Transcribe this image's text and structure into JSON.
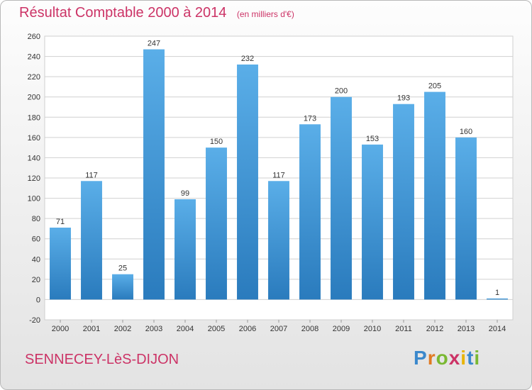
{
  "title": "Résultat Comptable 2000 à 2014",
  "unit": "(en milliers d'€)",
  "place": "SENNECEY-LèS-DIJON",
  "brand": {
    "letters": [
      "P",
      "r",
      "o",
      "x",
      "i",
      "t",
      "i"
    ],
    "colors": [
      "#3a88cc",
      "#e07a22",
      "#7ab832",
      "#cc3366",
      "#e8b400",
      "#3a88cc",
      "#7ab832"
    ]
  },
  "colors": {
    "title": "#cc3366",
    "bar_light": "#5aaee8",
    "bar_dark": "#2a7bbd",
    "grid": "#d0d0d0",
    "axis_text": "#333333"
  },
  "chart_data": {
    "type": "bar",
    "categories": [
      "2000",
      "2001",
      "2002",
      "2003",
      "2004",
      "2005",
      "2006",
      "2007",
      "2008",
      "2009",
      "2010",
      "2011",
      "2012",
      "2013",
      "2014"
    ],
    "values": [
      71,
      117,
      25,
      247,
      99,
      150,
      232,
      117,
      173,
      200,
      153,
      193,
      205,
      160,
      1
    ],
    "ylim": [
      -20,
      260
    ],
    "yticks": [
      -20,
      0,
      20,
      40,
      60,
      80,
      100,
      120,
      140,
      160,
      180,
      200,
      220,
      240,
      260
    ],
    "grid": true,
    "legend": "none"
  }
}
